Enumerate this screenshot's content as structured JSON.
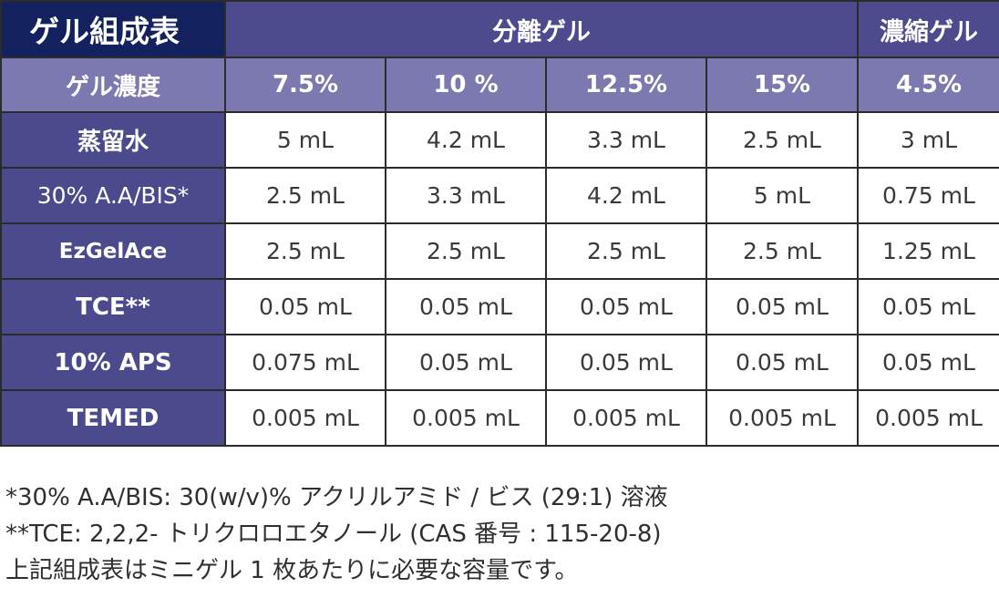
{
  "table": {
    "title": "ゲル組成表",
    "separating_gel_label": "分離ゲル",
    "stacking_gel_label": "濃縮ゲル",
    "concentration_header": "ゲル濃度",
    "concentrations": [
      "7.5%",
      "10 %",
      "12.5%",
      "15%",
      "4.5%"
    ],
    "rows": [
      {
        "label": "蒸留水",
        "values": [
          "5 mL",
          "4.2 mL",
          "3.3 mL",
          "2.5 mL",
          "3 mL"
        ]
      },
      {
        "label": "30% A.A/BIS*",
        "values": [
          "2.5 mL",
          "3.3 mL",
          "4.2 mL",
          "5 mL",
          "0.75 mL"
        ]
      },
      {
        "label": "EzGelAce",
        "values": [
          "2.5 mL",
          "2.5 mL",
          "2.5 mL",
          "2.5 mL",
          "1.25 mL"
        ]
      },
      {
        "label": "TCE**",
        "values": [
          "0.05 mL",
          "0.05 mL",
          "0.05 mL",
          "0.05 mL",
          "0.05 mL"
        ]
      },
      {
        "label": "10% APS",
        "values": [
          "0.075 mL",
          "0.05 mL",
          "0.05 mL",
          "0.05 mL",
          "0.05 mL"
        ]
      },
      {
        "label": "TEMED",
        "values": [
          "0.005 mL",
          "0.005 mL",
          "0.005 mL",
          "0.005 mL",
          "0.005 mL"
        ]
      }
    ]
  },
  "notes": [
    "*30% A.A/BIS: 30(w/v)% アクリルアミド / ビス (29:1) 溶液",
    "**TCE: 2,2,2- トリクロロエタノール (CAS 番号 : 115-20-8)",
    "上記組成表はミニゲル 1 枚あたりに必要な容量です。"
  ],
  "colors": {
    "title_bg": "#13215f",
    "group_header_bg": "#4d4a8e",
    "concentration_header_bg": "#7b79b0",
    "row_label_bg": "#4a4a8c",
    "value_text": "#3a3a3a"
  }
}
